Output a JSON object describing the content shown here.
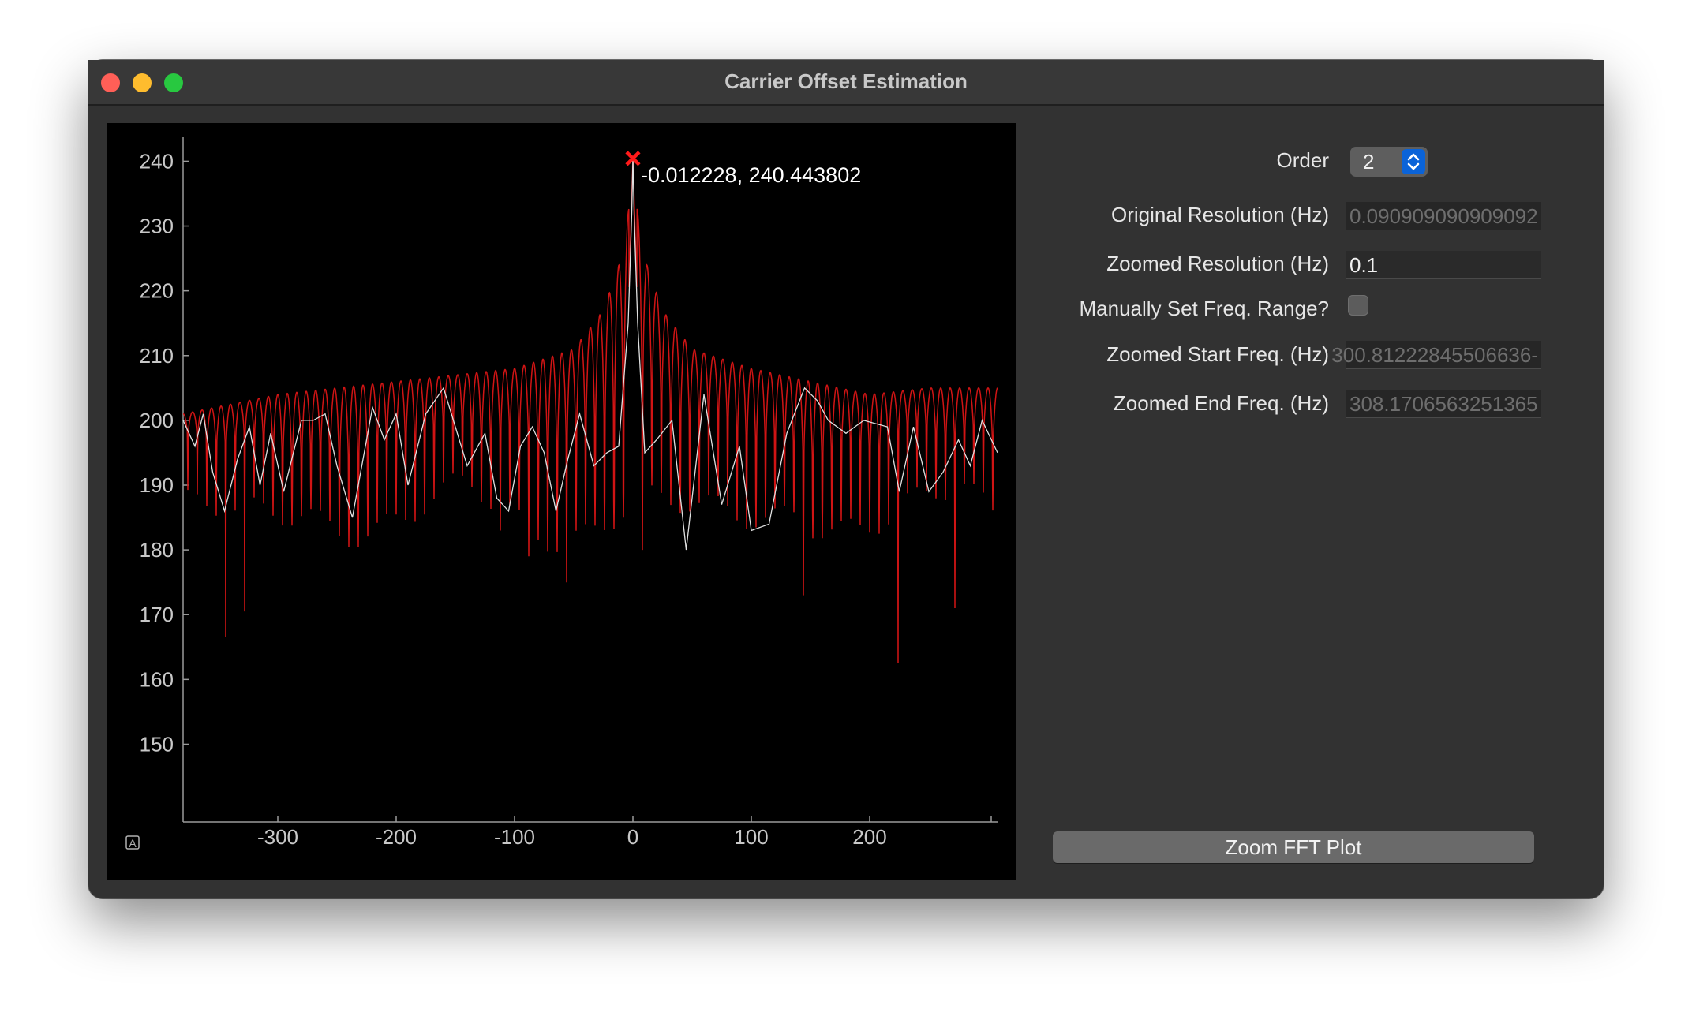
{
  "window": {
    "title": "Carrier Offset Estimation"
  },
  "form": {
    "order_label": "Order",
    "order_value": "2",
    "original_resolution_label": "Original Resolution (Hz)",
    "original_resolution_value": "0.090909090909092",
    "zoomed_resolution_label": "Zoomed Resolution (Hz)",
    "zoomed_resolution_value": "0.1",
    "manual_range_label": "Manually Set Freq. Range?",
    "manual_range_checked": false,
    "zoomed_start_label": "Zoomed Start Freq. (Hz)",
    "zoomed_start_value": "-300.81222845506636",
    "zoomed_end_label": "Zoomed End Freq. (Hz)",
    "zoomed_end_value": "308.1706563251365",
    "zoom_button_label": "Zoom FFT Plot"
  },
  "chart_data": {
    "type": "line",
    "xlim": [
      -380,
      308
    ],
    "ylim": [
      138,
      242
    ],
    "xticks": [
      -300,
      -200,
      -100,
      0,
      100,
      200
    ],
    "yticks": [
      150,
      160,
      170,
      180,
      190,
      200,
      210,
      220,
      230,
      240
    ],
    "peak": {
      "x": -0.012228,
      "y": 240.443802,
      "label": "-0.012228, 240.443802"
    },
    "autoscale_label": "A",
    "series": [
      {
        "color": "#d01414",
        "envelope": {
          "x": [
            -380,
            -300,
            -200,
            -100,
            -50,
            -25,
            -10,
            -4,
            0,
            4,
            10,
            25,
            50,
            100,
            150,
            200,
            250,
            308
          ],
          "y": [
            201,
            204,
            206,
            208,
            211,
            217,
            225,
            232,
            240.44,
            232,
            225,
            217,
            211,
            208,
            206,
            204,
            205,
            205
          ]
        },
        "deep_nulls": [
          {
            "x": -346,
            "y": 166.5
          },
          {
            "x": -325,
            "y": 170.5
          },
          {
            "x": -115,
            "y": 183
          },
          {
            "x": -88,
            "y": 179
          },
          {
            "x": -55,
            "y": 175
          },
          {
            "x": 8,
            "y": 180
          },
          {
            "x": 44,
            "y": 178
          },
          {
            "x": 100,
            "y": 176
          },
          {
            "x": 146,
            "y": 173
          },
          {
            "x": 222,
            "y": 162.5
          },
          {
            "x": 271,
            "y": 171
          }
        ]
      },
      {
        "color": "#e0e0e0",
        "x": [
          -380,
          -370,
          -363,
          -355,
          -345,
          -334,
          -324,
          -315,
          -306,
          -295,
          -280,
          -270,
          -260,
          -250,
          -237,
          -220,
          -210,
          -200,
          -190,
          -175,
          -160,
          -140,
          -125,
          -115,
          -105,
          -95,
          -85,
          -75,
          -65,
          -55,
          -45,
          -33,
          -22,
          -12,
          -4,
          -1,
          0,
          1,
          4,
          10,
          20,
          33,
          45,
          60,
          75,
          90,
          100,
          115,
          130,
          145,
          156,
          165,
          180,
          195,
          215,
          225,
          237,
          250,
          262,
          275,
          285,
          295,
          308
        ],
        "y": [
          200,
          196,
          201,
          192,
          186,
          194,
          199,
          190,
          198,
          189,
          200,
          200,
          201,
          193,
          185,
          202,
          197,
          201,
          190,
          201,
          205,
          193,
          198,
          188,
          186,
          196,
          199,
          195,
          186,
          194,
          201,
          193,
          195,
          196,
          215,
          232,
          240.44,
          232,
          215,
          195,
          197,
          200,
          180,
          204,
          187,
          196,
          183,
          184,
          198,
          205,
          203,
          200,
          198,
          200,
          199,
          189,
          199,
          189,
          192,
          197,
          193,
          200,
          195
        ]
      }
    ]
  }
}
